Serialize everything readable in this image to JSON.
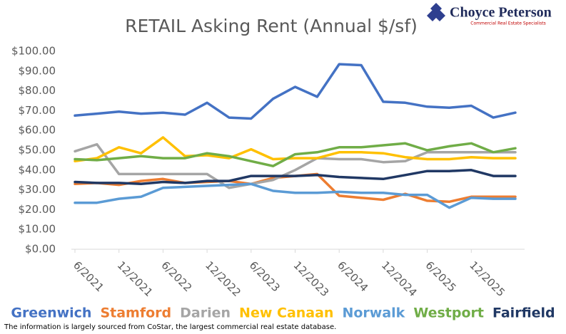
{
  "logo": {
    "name": "Choyce Peterson",
    "tagline": "Commercial Real Estate Specialists"
  },
  "footnote": "The information is largely sourced from CoStar, the largest commercial real estate database.",
  "chart_data": {
    "type": "line",
    "title": "RETAIL Asking Rent (Annual $/sf)",
    "categories": [
      "6/2021",
      null,
      "12/2021",
      null,
      "6/2022",
      null,
      "12/2022",
      null,
      "6/2023",
      null,
      "12/2023",
      null,
      "6/2024",
      null,
      "12/2024",
      null,
      "6/2025",
      null,
      "12/2025",
      null,
      null
    ],
    "series": [
      {
        "name": "Greenwich",
        "color": "#4472c4",
        "values": [
          67.5,
          68.5,
          69.5,
          68.5,
          69,
          68,
          74,
          66.5,
          66,
          76,
          82,
          77,
          93.5,
          93,
          74.5,
          74,
          72,
          71.5,
          72.5,
          66.5,
          69
        ]
      },
      {
        "name": "Stamford",
        "color": "#ed7d31",
        "values": [
          33,
          33.5,
          32.5,
          34.5,
          35.5,
          33.5,
          34,
          34.5,
          33,
          36,
          37,
          38,
          27,
          26,
          25,
          28,
          24.5,
          24,
          26.5,
          26.5,
          26.5
        ]
      },
      {
        "name": "Darien",
        "color": "#a5a5a5",
        "values": [
          49.5,
          53,
          38,
          38,
          38,
          38,
          38,
          31,
          33,
          35,
          40,
          46,
          45.5,
          45.5,
          44,
          44.5,
          49,
          49,
          49,
          49,
          49
        ]
      },
      {
        "name": "New Canaan",
        "color": "#ffc000",
        "values": [
          44.5,
          46,
          51.5,
          48.5,
          56.5,
          47,
          47.5,
          46,
          50.5,
          45.5,
          46,
          46,
          49,
          49,
          48.5,
          46.5,
          45.5,
          45.5,
          46.5,
          46,
          46
        ]
      },
      {
        "name": "Norwalk",
        "color": "#5b9bd5",
        "values": [
          23.5,
          23.5,
          25.5,
          26.5,
          31,
          31.5,
          32,
          32.5,
          33,
          29.5,
          28.5,
          28.5,
          29,
          28.5,
          28.5,
          27.5,
          27.5,
          21,
          26,
          25.5,
          25.5
        ]
      },
      {
        "name": "Westport",
        "color": "#70ad47",
        "values": [
          45.5,
          45,
          46,
          47,
          46,
          46,
          48.5,
          47,
          44.5,
          42,
          48,
          49,
          51.5,
          51.5,
          52.5,
          53.5,
          50,
          52,
          53.5,
          49,
          51
        ]
      },
      {
        "name": "Fairfield",
        "color": "#203864",
        "values": [
          34,
          33.5,
          33.5,
          33,
          34,
          33.5,
          34.5,
          34.5,
          37,
          37,
          37,
          37.5,
          36.5,
          36,
          35.5,
          37.5,
          39.5,
          39.5,
          40,
          37,
          37
        ]
      }
    ],
    "ylim": [
      0,
      100
    ],
    "yticks": [
      {
        "value": 0,
        "label": "$0.00"
      },
      {
        "value": 10,
        "label": "$10.00"
      },
      {
        "value": 20,
        "label": "$20.00"
      },
      {
        "value": 30,
        "label": "$30.00"
      },
      {
        "value": 40,
        "label": "$40.00"
      },
      {
        "value": 50,
        "label": "$50.00"
      },
      {
        "value": 60,
        "label": "$60.00"
      },
      {
        "value": 70,
        "label": "$70.00"
      },
      {
        "value": 80,
        "label": "$80.00"
      },
      {
        "value": 90,
        "label": "$90.00"
      },
      {
        "value": 100,
        "label": "$100.00"
      }
    ],
    "grid": false,
    "legend": "bottom"
  }
}
